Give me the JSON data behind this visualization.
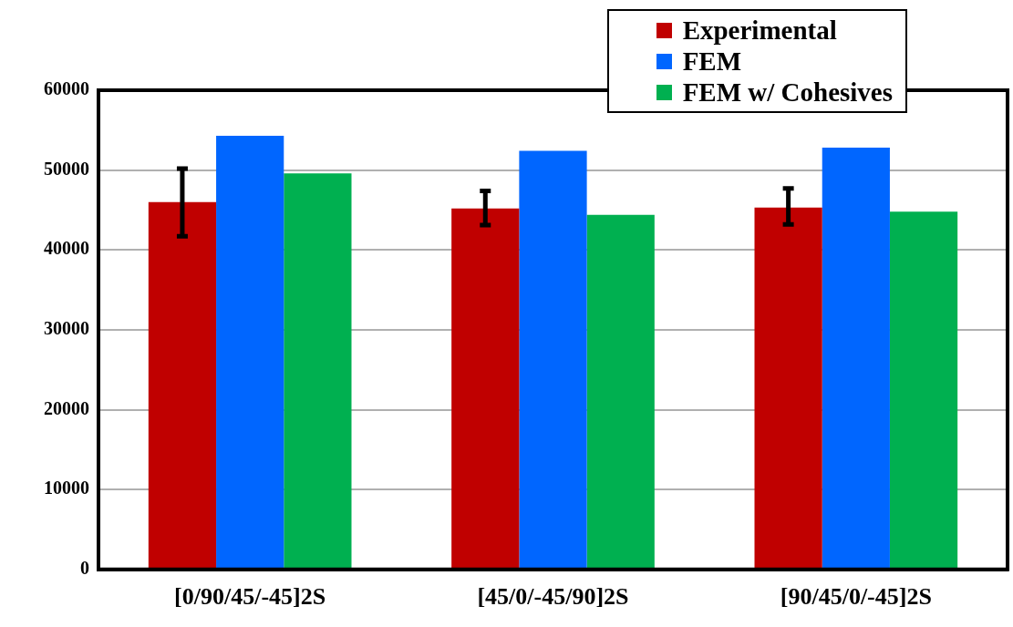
{
  "chart_data": {
    "type": "bar",
    "categories": [
      "[0/90/45/-45]2S",
      "[45/0/-45/90]2S",
      "[90/45/0/-45]2S"
    ],
    "series": [
      {
        "name": "Experimental",
        "color": "#c00000",
        "values": [
          46000,
          45200,
          45300
        ],
        "errors": [
          [
            41700,
            50200
          ],
          [
            43100,
            47400
          ],
          [
            43200,
            47700
          ]
        ]
      },
      {
        "name": "FEM",
        "color": "#0066ff",
        "values": [
          54300,
          52400,
          52800
        ]
      },
      {
        "name": "FEM w/ Cohesives",
        "color": "#00b050",
        "values": [
          49600,
          44400,
          44800
        ]
      }
    ],
    "ylim": [
      0,
      60000
    ],
    "yticks": [
      0,
      10000,
      20000,
      30000,
      40000,
      50000,
      60000
    ],
    "grid": "y",
    "legend": "top right"
  }
}
